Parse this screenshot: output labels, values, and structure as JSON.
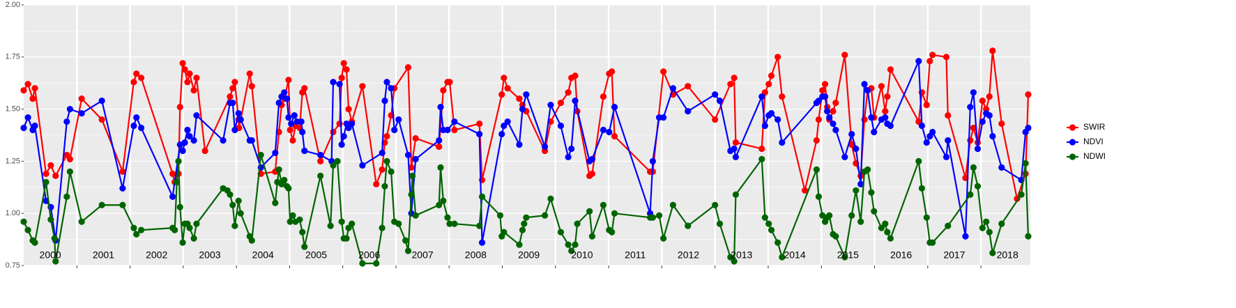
{
  "chart_data": {
    "type": "line",
    "year_labels": [
      "2000",
      "2001",
      "2002",
      "2003",
      "2004",
      "2005",
      "2006",
      "2007",
      "2008",
      "2009",
      "2010",
      "2011",
      "2012",
      "2013",
      "2014",
      "2015",
      "2016",
      "2017",
      "2018"
    ],
    "xlim": [
      2000,
      2018.93
    ],
    "xticks": [
      2001,
      2002,
      2003,
      2004,
      2005,
      2006,
      2007,
      2008,
      2009,
      2010,
      2011,
      2012,
      2013,
      2014,
      2015,
      2016,
      2017,
      2018
    ],
    "ylim": [
      0.75,
      2.0
    ],
    "yticks": [
      {
        "value": 0.75,
        "label": "0.75"
      },
      {
        "value": 1,
        "label": "1.00"
      },
      {
        "value": 1.25,
        "label": "1.25"
      },
      {
        "value": 1.5,
        "label": "1.50"
      },
      {
        "value": 1.75,
        "label": "1.75"
      },
      {
        "value": 2,
        "label": "2.00"
      }
    ],
    "grid": true,
    "legend": "right",
    "series": [
      {
        "name": "SWIR",
        "color": "#ff0000",
        "x": [
          2000.0,
          2000.08,
          2000.17,
          2000.21,
          2000.42,
          2000.51,
          2000.6,
          2000.81,
          2000.87,
          2001.09,
          2001.47,
          2001.86,
          2002.07,
          2002.12,
          2002.21,
          2002.8,
          2002.84,
          2002.91,
          2002.94,
          2002.99,
          2003.03,
          2003.08,
          2003.12,
          2003.2,
          2003.25,
          2003.41,
          2003.88,
          2003.93,
          2003.97,
          2004.04,
          2004.05,
          2004.25,
          2004.29,
          2004.46,
          2004.73,
          2004.8,
          2004.85,
          2004.9,
          2004.98,
          2005.01,
          2005.06,
          2005.11,
          2005.19,
          2005.24,
          2005.28,
          2005.58,
          2005.82,
          2005.94,
          2005.98,
          2006.02,
          2006.07,
          2006.11,
          2006.17,
          2006.37,
          2006.63,
          2006.74,
          2006.79,
          2006.83,
          2006.91,
          2006.97,
          2007.23,
          2007.29,
          2007.37,
          2007.81,
          2007.89,
          2007.97,
          2008.01,
          2008.1,
          2008.57,
          2008.62,
          2008.99,
          2009.03,
          2009.1,
          2009.32,
          2009.38,
          2009.45,
          2009.8,
          2009.91,
          2010.1,
          2010.24,
          2010.3,
          2010.37,
          2010.41,
          2010.64,
          2010.69,
          2010.9,
          2011.01,
          2011.06,
          2011.11,
          2011.78,
          2011.83,
          2012.03,
          2012.21,
          2012.49,
          2013.0,
          2013.29,
          2013.36,
          2013.39,
          2013.88,
          2013.94,
          2014.01,
          2014.06,
          2014.18,
          2014.26,
          2014.69,
          2014.91,
          2014.95,
          2015.02,
          2015.07,
          2015.11,
          2015.15,
          2015.22,
          2015.27,
          2015.44,
          2015.57,
          2015.65,
          2015.74,
          2015.81,
          2015.87,
          2015.94,
          2015.99,
          2016.13,
          2016.2,
          2016.24,
          2016.3,
          2016.83,
          2016.89,
          2016.98,
          2017.04,
          2017.09,
          2017.35,
          2017.38,
          2017.71,
          2017.8,
          2017.86,
          2017.94,
          2018.03,
          2018.1,
          2018.16,
          2018.22,
          2018.39,
          2018.68,
          2018.84,
          2018.89
        ],
        "values": [
          1.59,
          1.62,
          1.55,
          1.6,
          1.19,
          1.23,
          1.18,
          1.28,
          1.26,
          1.55,
          1.45,
          1.2,
          1.63,
          1.67,
          1.65,
          1.19,
          1.15,
          1.19,
          1.51,
          1.72,
          1.69,
          1.63,
          1.67,
          1.59,
          1.65,
          1.3,
          1.56,
          1.6,
          1.63,
          1.45,
          1.41,
          1.67,
          1.61,
          1.19,
          1.2,
          1.39,
          1.52,
          1.55,
          1.64,
          1.4,
          1.35,
          1.42,
          1.41,
          1.58,
          1.6,
          1.25,
          1.39,
          1.43,
          1.65,
          1.72,
          1.69,
          1.5,
          1.44,
          1.61,
          1.14,
          1.21,
          1.34,
          1.37,
          1.47,
          1.6,
          1.7,
          1.22,
          1.36,
          1.32,
          1.59,
          1.63,
          1.63,
          1.4,
          1.43,
          1.16,
          1.57,
          1.65,
          1.6,
          1.55,
          1.52,
          1.49,
          1.3,
          1.44,
          1.53,
          1.58,
          1.65,
          1.66,
          1.49,
          1.18,
          1.19,
          1.56,
          1.67,
          1.68,
          1.37,
          1.2,
          1.2,
          1.68,
          1.57,
          1.61,
          1.45,
          1.62,
          1.65,
          1.34,
          1.31,
          1.58,
          1.62,
          1.66,
          1.75,
          1.56,
          1.11,
          1.35,
          1.45,
          1.59,
          1.62,
          1.51,
          1.45,
          1.49,
          1.53,
          1.76,
          1.33,
          1.24,
          1.18,
          1.45,
          1.59,
          1.6,
          1.46,
          1.61,
          1.49,
          1.56,
          1.69,
          1.44,
          1.58,
          1.52,
          1.73,
          1.76,
          1.75,
          1.47,
          1.17,
          1.35,
          1.41,
          1.34,
          1.54,
          1.5,
          1.56,
          1.78,
          1.43,
          1.07,
          1.19,
          1.57
        ]
      },
      {
        "name": "NDVI",
        "color": "#0000ff",
        "x": [
          2000.0,
          2000.08,
          2000.17,
          2000.21,
          2000.42,
          2000.51,
          2000.6,
          2000.81,
          2000.87,
          2001.09,
          2001.47,
          2001.86,
          2002.07,
          2002.12,
          2002.21,
          2002.8,
          2002.94,
          2002.99,
          2003.03,
          2003.08,
          2003.12,
          2003.2,
          2003.25,
          2003.75,
          2003.88,
          2003.93,
          2003.97,
          2004.04,
          2004.08,
          2004.25,
          2004.29,
          2004.46,
          2004.73,
          2004.8,
          2004.85,
          2004.9,
          2004.95,
          2004.98,
          2005.03,
          2005.09,
          2005.14,
          2005.22,
          2005.24,
          2005.28,
          2005.58,
          2005.79,
          2005.82,
          2005.94,
          2005.98,
          2006.02,
          2006.07,
          2006.11,
          2006.17,
          2006.37,
          2006.74,
          2006.79,
          2006.83,
          2006.91,
          2006.97,
          2007.05,
          2007.23,
          2007.29,
          2007.37,
          2007.81,
          2007.84,
          2007.89,
          2007.97,
          2008.1,
          2008.57,
          2008.62,
          2008.99,
          2009.03,
          2009.1,
          2009.32,
          2009.38,
          2009.45,
          2009.8,
          2009.91,
          2010.1,
          2010.24,
          2010.3,
          2010.37,
          2010.64,
          2010.69,
          2010.9,
          2011.01,
          2011.11,
          2011.78,
          2011.83,
          2011.95,
          2012.03,
          2012.21,
          2012.49,
          2013.0,
          2013.09,
          2013.29,
          2013.36,
          2013.39,
          2013.88,
          2013.94,
          2014.01,
          2014.06,
          2014.18,
          2014.26,
          2014.91,
          2014.95,
          2015.02,
          2015.07,
          2015.11,
          2015.15,
          2015.22,
          2015.27,
          2015.44,
          2015.57,
          2015.65,
          2015.74,
          2015.81,
          2015.87,
          2015.94,
          2015.99,
          2016.13,
          2016.2,
          2016.24,
          2016.3,
          2016.83,
          2016.89,
          2016.98,
          2017.04,
          2017.09,
          2017.35,
          2017.38,
          2017.71,
          2017.8,
          2017.86,
          2017.94,
          2018.03,
          2018.1,
          2018.16,
          2018.22,
          2018.39,
          2018.76,
          2018.84,
          2018.89
        ],
        "values": [
          1.41,
          1.46,
          1.4,
          1.42,
          1.06,
          1.03,
          0.87,
          1.44,
          1.5,
          1.48,
          1.54,
          1.12,
          1.42,
          1.46,
          1.41,
          1.08,
          1.33,
          1.3,
          1.34,
          1.4,
          1.37,
          1.35,
          1.47,
          1.35,
          1.53,
          1.53,
          1.4,
          1.48,
          1.45,
          1.35,
          1.35,
          1.22,
          1.29,
          1.53,
          1.56,
          1.58,
          1.55,
          1.46,
          1.43,
          1.47,
          1.44,
          1.44,
          1.39,
          1.3,
          1.28,
          1.25,
          1.63,
          1.62,
          1.33,
          1.37,
          1.43,
          1.41,
          1.43,
          1.23,
          1.29,
          1.54,
          1.63,
          1.6,
          1.4,
          1.45,
          1.28,
          1.0,
          1.26,
          1.35,
          1.51,
          1.4,
          1.4,
          1.44,
          1.38,
          0.86,
          1.38,
          1.42,
          1.44,
          1.33,
          1.5,
          1.57,
          1.32,
          1.52,
          1.42,
          1.27,
          1.31,
          1.54,
          1.25,
          1.26,
          1.4,
          1.39,
          1.51,
          1.0,
          1.25,
          1.46,
          1.46,
          1.6,
          1.49,
          1.57,
          1.54,
          1.3,
          1.31,
          1.27,
          1.56,
          1.42,
          1.47,
          1.48,
          1.45,
          1.34,
          1.53,
          1.54,
          1.56,
          1.56,
          1.49,
          1.46,
          1.43,
          1.4,
          1.27,
          1.38,
          1.31,
          1.14,
          1.62,
          1.59,
          1.46,
          1.39,
          1.45,
          1.46,
          1.43,
          1.42,
          1.73,
          1.42,
          1.34,
          1.37,
          1.39,
          1.27,
          1.35,
          0.89,
          1.51,
          1.58,
          1.31,
          1.44,
          1.48,
          1.47,
          1.37,
          1.22,
          1.16,
          1.39,
          1.41
        ]
      },
      {
        "name": "NDWI",
        "color": "#006400",
        "x": [
          2000.0,
          2000.08,
          2000.17,
          2000.21,
          2000.42,
          2000.51,
          2000.58,
          2000.6,
          2000.81,
          2000.87,
          2001.09,
          2001.47,
          2001.86,
          2002.07,
          2002.12,
          2002.21,
          2002.8,
          2002.84,
          2002.88,
          2002.91,
          2002.94,
          2002.99,
          2003.03,
          2003.08,
          2003.12,
          2003.2,
          2003.25,
          2003.75,
          2003.83,
          2003.88,
          2003.93,
          2003.97,
          2004.04,
          2004.08,
          2004.25,
          2004.29,
          2004.46,
          2004.73,
          2004.77,
          2004.8,
          2004.85,
          2004.9,
          2004.95,
          2004.98,
          2005.01,
          2005.06,
          2005.11,
          2005.19,
          2005.24,
          2005.28,
          2005.58,
          2005.77,
          2005.82,
          2005.9,
          2005.98,
          2006.02,
          2006.07,
          2006.11,
          2006.17,
          2006.37,
          2006.63,
          2006.74,
          2006.79,
          2006.83,
          2006.91,
          2006.97,
          2007.05,
          2007.18,
          2007.23,
          2007.29,
          2007.31,
          2007.37,
          2007.81,
          2007.84,
          2007.89,
          2007.97,
          2008.01,
          2008.1,
          2008.57,
          2008.62,
          2008.96,
          2008.99,
          2009.03,
          2009.32,
          2009.38,
          2009.41,
          2009.45,
          2009.8,
          2009.91,
          2010.1,
          2010.24,
          2010.3,
          2010.37,
          2010.41,
          2010.64,
          2010.69,
          2010.9,
          2011.01,
          2011.06,
          2011.11,
          2011.78,
          2011.83,
          2011.95,
          2012.03,
          2012.21,
          2012.49,
          2013.0,
          2013.09,
          2013.29,
          2013.36,
          2013.39,
          2013.88,
          2013.94,
          2014.01,
          2014.06,
          2014.18,
          2014.26,
          2014.91,
          2014.95,
          2015.02,
          2015.07,
          2015.11,
          2015.15,
          2015.22,
          2015.27,
          2015.44,
          2015.57,
          2015.65,
          2015.74,
          2015.81,
          2015.87,
          2015.94,
          2015.99,
          2016.13,
          2016.2,
          2016.24,
          2016.3,
          2016.83,
          2016.89,
          2016.98,
          2017.04,
          2017.09,
          2017.38,
          2017.8,
          2017.86,
          2017.94,
          2018.03,
          2018.1,
          2018.16,
          2018.22,
          2018.39,
          2018.76,
          2018.84,
          2018.89
        ],
        "values": [
          0.96,
          0.92,
          0.87,
          0.86,
          1.15,
          0.97,
          0.88,
          0.77,
          1.08,
          1.2,
          0.96,
          1.04,
          1.04,
          0.93,
          0.9,
          0.92,
          0.93,
          0.92,
          1.15,
          1.25,
          1.03,
          0.86,
          0.95,
          0.95,
          0.93,
          0.88,
          0.95,
          1.12,
          1.11,
          1.09,
          1.04,
          0.94,
          1.06,
          1.0,
          0.89,
          0.87,
          1.28,
          1.05,
          1.15,
          1.21,
          1.14,
          1.16,
          1.13,
          1.12,
          0.96,
          0.99,
          0.96,
          0.97,
          0.91,
          0.84,
          1.18,
          0.94,
          1.23,
          1.25,
          0.96,
          0.88,
          0.88,
          0.93,
          0.95,
          0.76,
          0.76,
          0.93,
          1.13,
          1.25,
          1.2,
          0.96,
          0.95,
          0.87,
          0.82,
          1.09,
          1.18,
          0.99,
          1.04,
          1.22,
          1.06,
          0.98,
          0.95,
          0.95,
          0.94,
          1.08,
          0.99,
          0.89,
          0.91,
          0.85,
          0.92,
          0.95,
          0.98,
          0.99,
          1.07,
          0.91,
          0.85,
          0.82,
          0.85,
          0.95,
          1.01,
          0.89,
          1.04,
          0.92,
          0.91,
          1.0,
          0.98,
          0.98,
          0.99,
          0.88,
          1.04,
          0.94,
          1.04,
          0.95,
          0.79,
          0.77,
          1.09,
          1.26,
          0.98,
          0.95,
          0.92,
          0.86,
          0.79,
          1.21,
          1.08,
          0.99,
          0.96,
          0.98,
          0.99,
          0.9,
          0.89,
          0.79,
          0.99,
          1.11,
          0.96,
          1.2,
          1.21,
          1.1,
          1.01,
          0.93,
          0.95,
          0.91,
          0.88,
          1.25,
          1.12,
          0.98,
          0.86,
          0.86,
          0.94,
          1.09,
          1.22,
          1.13,
          0.93,
          0.96,
          0.91,
          0.81,
          0.95,
          1.09,
          1.24,
          0.89
        ]
      }
    ]
  }
}
